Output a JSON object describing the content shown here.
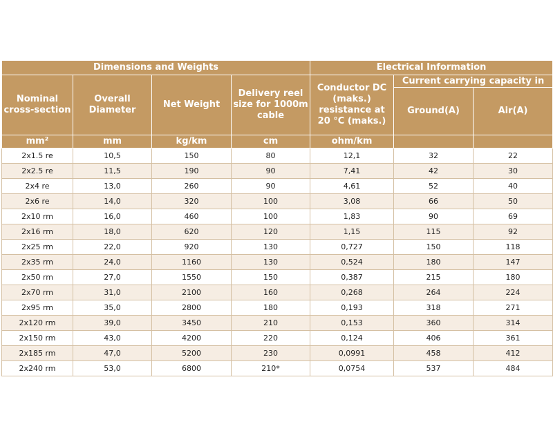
{
  "table": {
    "group_dimensions": "Dimensions and Weights",
    "group_electrical": "Electrical Information",
    "group_current": "Current carrying capacity in",
    "columns": {
      "nominal": "Nominal cross-section",
      "diameter": "Overall Diameter",
      "weight": "Net Weight",
      "reel": "Delivery reel size for 1000m cable",
      "resistance": "Conductor DC (maks.) resistance at 20 °C (maks.)",
      "ground": "Ground(A)",
      "air": "Air(A)"
    },
    "units": {
      "nominal": "mm²",
      "diameter": "mm",
      "weight": "kg/km",
      "reel": "cm",
      "resistance": "ohm/km"
    },
    "rows": [
      [
        "2x1.5 re",
        "10,5",
        "150",
        "80",
        "12,1",
        "32",
        "22"
      ],
      [
        "2x2.5 re",
        "11,5",
        "190",
        "90",
        "7,41",
        "42",
        "30"
      ],
      [
        "2x4 re",
        "13,0",
        "260",
        "90",
        "4,61",
        "52",
        "40"
      ],
      [
        "2x6 re",
        "14,0",
        "320",
        "100",
        "3,08",
        "66",
        "50"
      ],
      [
        "2x10 rm",
        "16,0",
        "460",
        "100",
        "1,83",
        "90",
        "69"
      ],
      [
        "2x16 rm",
        "18,0",
        "620",
        "120",
        "1,15",
        "115",
        "92"
      ],
      [
        "2x25 rm",
        "22,0",
        "920",
        "130",
        "0,727",
        "150",
        "118"
      ],
      [
        "2x35 rm",
        "24,0",
        "1160",
        "130",
        "0,524",
        "180",
        "147"
      ],
      [
        "2x50 rm",
        "27,0",
        "1550",
        "150",
        "0,387",
        "215",
        "180"
      ],
      [
        "2x70 rm",
        "31,0",
        "2100",
        "160",
        "0,268",
        "264",
        "224"
      ],
      [
        "2x95 rm",
        "35,0",
        "2800",
        "180",
        "0,193",
        "318",
        "271"
      ],
      [
        "2x120 rm",
        "39,0",
        "3450",
        "210",
        "0,153",
        "360",
        "314"
      ],
      [
        "2x150 rm",
        "43,0",
        "4200",
        "220",
        "0,124",
        "406",
        "361"
      ],
      [
        "2x185 rm",
        "47,0",
        "5200",
        "230",
        "0,0991",
        "458",
        "412"
      ],
      [
        "2x240 rm",
        "53,0",
        "6800",
        "210*",
        "0,0754",
        "537",
        "484"
      ]
    ]
  }
}
